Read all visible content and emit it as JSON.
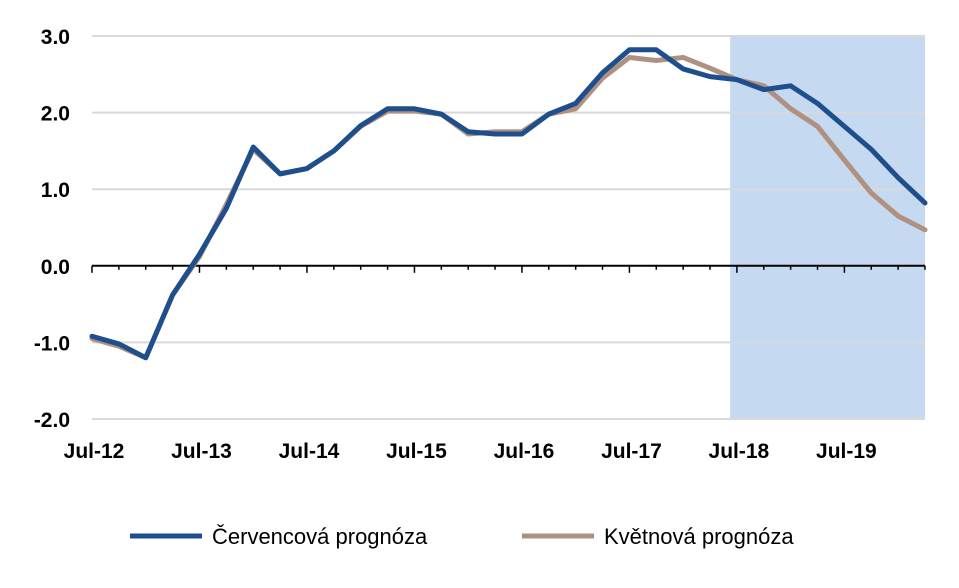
{
  "chart_data": {
    "type": "line",
    "title": "",
    "xlabel": "",
    "ylabel": "",
    "ylim": [
      -2.0,
      3.0
    ],
    "y_ticks": [
      3.0,
      2.0,
      1.0,
      0.0,
      -1.0,
      -2.0
    ],
    "y_tick_labels": [
      "3.0",
      "2.0",
      "1.0",
      "0.0",
      "-1.0",
      "-2.0"
    ],
    "x_tick_labels": [
      "Jul-12",
      "Jul-13",
      "Jul-14",
      "Jul-15",
      "Jul-16",
      "Jul-17",
      "Jul-18",
      "Jul-19"
    ],
    "x_tick_positions": [
      0,
      4,
      8,
      12,
      16,
      20,
      24,
      28
    ],
    "quarters_count": 31,
    "grid": true,
    "legend_position": "bottom",
    "forecast_shade": {
      "from": 23.75,
      "to": 31,
      "color": "#c5d9f1"
    },
    "series": [
      {
        "name": "Červencová prognóza",
        "color": "#1f4e8c",
        "values": [
          -0.92,
          -1.02,
          -1.2,
          -0.38,
          0.15,
          0.75,
          1.55,
          1.2,
          1.27,
          1.5,
          1.83,
          2.05,
          2.05,
          1.98,
          1.75,
          1.72,
          1.72,
          1.98,
          2.12,
          2.52,
          2.82,
          2.82,
          2.57,
          2.47,
          2.43,
          2.3,
          2.35,
          2.12,
          1.82,
          1.52,
          1.15,
          0.82
        ]
      },
      {
        "name": "Květnová prognóza",
        "color": "#b09080",
        "values": [
          -0.95,
          -1.05,
          -1.2,
          -0.38,
          0.12,
          0.8,
          1.52,
          1.2,
          1.27,
          1.5,
          1.82,
          2.02,
          2.02,
          1.98,
          1.72,
          1.75,
          1.75,
          1.98,
          2.05,
          2.45,
          2.72,
          2.68,
          2.72,
          2.58,
          2.43,
          2.35,
          2.05,
          1.82,
          1.38,
          0.95,
          0.65,
          0.47
        ]
      }
    ]
  }
}
